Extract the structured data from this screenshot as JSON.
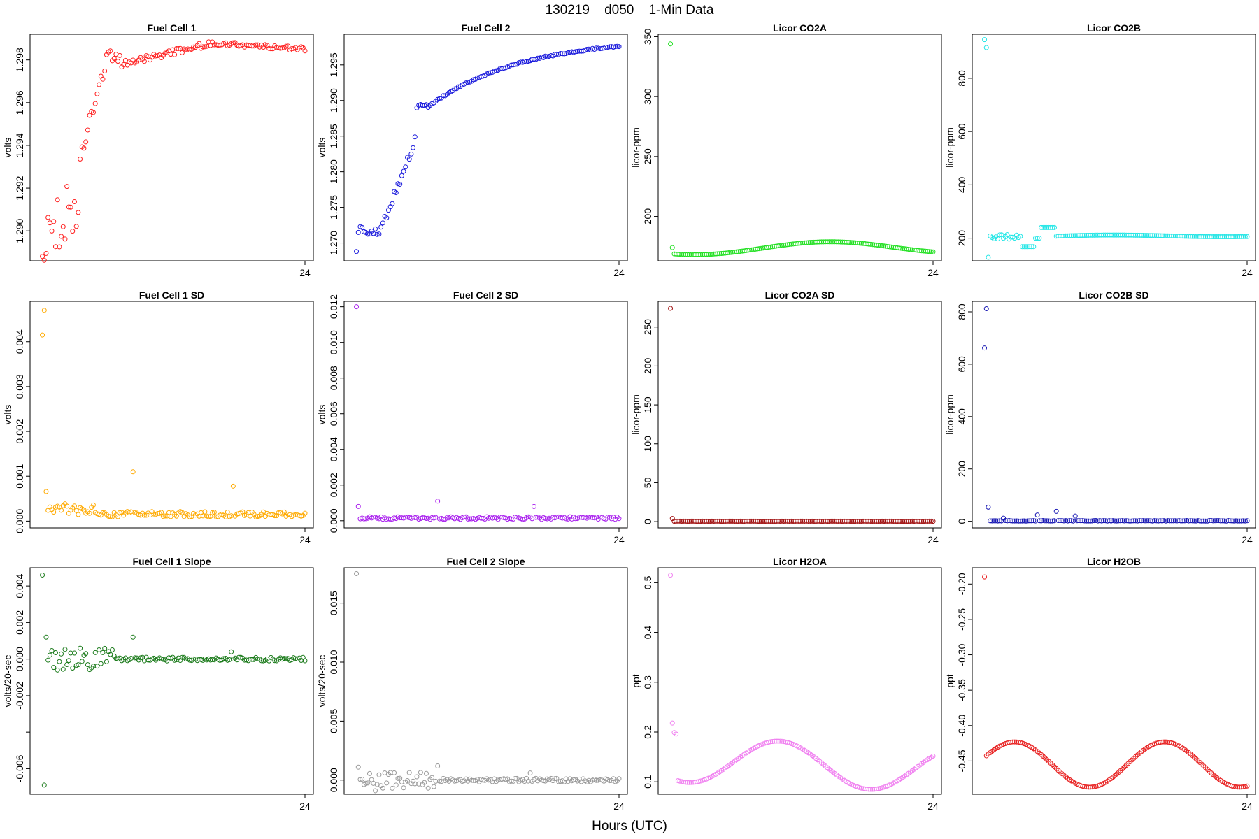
{
  "title": "130219    d050    1-Min Data",
  "x_axis_title": "Hours (UTC)",
  "chart_data": [
    {
      "type": "scatter",
      "title": "Fuel Cell 1",
      "ylabel": "volts",
      "color": "#ff2020",
      "ylim": [
        1.2886,
        1.2992
      ],
      "yticks": [
        1.29,
        1.292,
        1.294,
        1.296,
        1.298
      ],
      "xlabel_tick": "24",
      "pattern": "fc1",
      "x_tick": 24,
      "xlim": [
        0,
        24
      ],
      "n": 140
    },
    {
      "type": "scatter",
      "title": "Fuel Cell 2",
      "ylabel": "volts",
      "color": "#1a1adc",
      "ylim": [
        1.2675,
        1.2993
      ],
      "yticks": [
        1.27,
        1.275,
        1.28,
        1.285,
        1.29,
        1.295
      ],
      "xlabel_tick": "24",
      "pattern": "fc2",
      "x_tick": 24,
      "xlim": [
        0,
        24
      ],
      "n": 140
    },
    {
      "type": "scatter",
      "title": "Licor CO2A",
      "ylabel": "licor-ppm",
      "color": "#22e022",
      "ylim": [
        163,
        352
      ],
      "yticks": [
        200,
        250,
        300,
        350
      ],
      "xlabel_tick": "24",
      "pattern": "co2a",
      "x_tick": 24,
      "xlim": [
        0,
        24
      ],
      "n": 140
    },
    {
      "type": "scatter",
      "title": "Licor CO2B",
      "ylabel": "licor-ppm",
      "color": "#22e6e6",
      "ylim": [
        115,
        965
      ],
      "yticks": [
        200,
        400,
        600,
        800
      ],
      "xlabel_tick": "24",
      "pattern": "co2b",
      "x_tick": 24,
      "xlim": [
        0,
        24
      ],
      "n": 140
    },
    {
      "type": "scatter",
      "title": "Fuel Cell 1 SD",
      "ylabel": "volts",
      "color": "#ffaa00",
      "ylim": [
        -0.00015,
        0.0049
      ],
      "yticks": [
        0,
        0.001,
        0.002,
        0.003,
        0.004
      ],
      "xlabel_tick": "24",
      "pattern": "fc1sd",
      "x_tick": 24,
      "xlim": [
        0,
        24
      ],
      "n": 140
    },
    {
      "type": "scatter",
      "title": "Fuel Cell 2 SD",
      "ylabel": "volts",
      "color": "#aa22ee",
      "ylim": [
        -0.0004,
        0.0123
      ],
      "yticks": [
        0,
        0.002,
        0.004,
        0.006,
        0.008,
        0.01,
        0.012
      ],
      "xlabel_tick": "24",
      "pattern": "fc2sd",
      "x_tick": 24,
      "xlim": [
        0,
        24
      ],
      "n": 140
    },
    {
      "type": "scatter",
      "title": "Licor CO2A SD",
      "ylabel": "licor-ppm",
      "color": "#a01010",
      "ylim": [
        -8,
        283
      ],
      "yticks": [
        0,
        50,
        100,
        150,
        200,
        250
      ],
      "xlabel_tick": "24",
      "pattern": "co2asd",
      "x_tick": 24,
      "xlim": [
        0,
        24
      ],
      "n": 140
    },
    {
      "type": "scatter",
      "title": "Licor CO2B SD",
      "ylabel": "licor-ppm",
      "color": "#1a1ab4",
      "ylim": [
        -25,
        840
      ],
      "yticks": [
        0,
        200,
        400,
        600,
        800
      ],
      "xlabel_tick": "24",
      "pattern": "co2bsd",
      "x_tick": 24,
      "xlim": [
        0,
        24
      ],
      "n": 140
    },
    {
      "type": "scatter",
      "title": "Fuel Cell 1 Slope",
      "ylabel": "volts/20-sec",
      "color": "#1a7a1a",
      "ylim": [
        -0.0074,
        0.005
      ],
      "yticks": [
        -0.006,
        -0.004,
        -0.002,
        0,
        0.002,
        0.004
      ],
      "ytick_labels": [
        "-0.006",
        "",
        "-0.002",
        "0.000",
        "0.002",
        "0.004"
      ],
      "xlabel_tick": "24",
      "pattern": "fc1sl",
      "x_tick": 24,
      "xlim": [
        0,
        24
      ],
      "n": 140
    },
    {
      "type": "scatter",
      "title": "Fuel Cell 2 Slope",
      "ylabel": "volts/20-sec",
      "color": "#999999",
      "ylim": [
        -0.0012,
        0.018
      ],
      "yticks": [
        0,
        0.005,
        0.01,
        0.015
      ],
      "xlabel_tick": "24",
      "pattern": "fc2sl",
      "x_tick": 24,
      "xlim": [
        0,
        24
      ],
      "n": 140
    },
    {
      "type": "scatter",
      "title": "Licor H2OA",
      "ylabel": "ppt",
      "color": "#f080f0",
      "ylim": [
        0.075,
        0.53
      ],
      "yticks": [
        0.1,
        0.2,
        0.3,
        0.4,
        0.5
      ],
      "xlabel_tick": "24",
      "pattern": "h2oa",
      "x_tick": 24,
      "xlim": [
        0,
        24
      ],
      "n": 140
    },
    {
      "type": "scatter",
      "title": "Licor H2OB",
      "ylabel": "ppt",
      "color": "#e82020",
      "ylim": [
        -0.497,
        -0.177
      ],
      "yticks": [
        -0.45,
        -0.4,
        -0.35,
        -0.3,
        -0.25,
        -0.2
      ],
      "xlabel_tick": "24",
      "pattern": "h2ob",
      "x_tick": 24,
      "xlim": [
        0,
        24
      ],
      "n": 140
    }
  ]
}
